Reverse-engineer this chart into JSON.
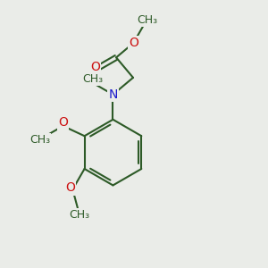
{
  "bg_color": "#eaece8",
  "bond_color": "#2d5a27",
  "bond_width": 1.5,
  "N_color": "#1a1acc",
  "O_color": "#cc1111",
  "font_size_atom": 10,
  "font_size_label": 9,
  "xlim": [
    0,
    10
  ],
  "ylim": [
    0,
    10
  ]
}
